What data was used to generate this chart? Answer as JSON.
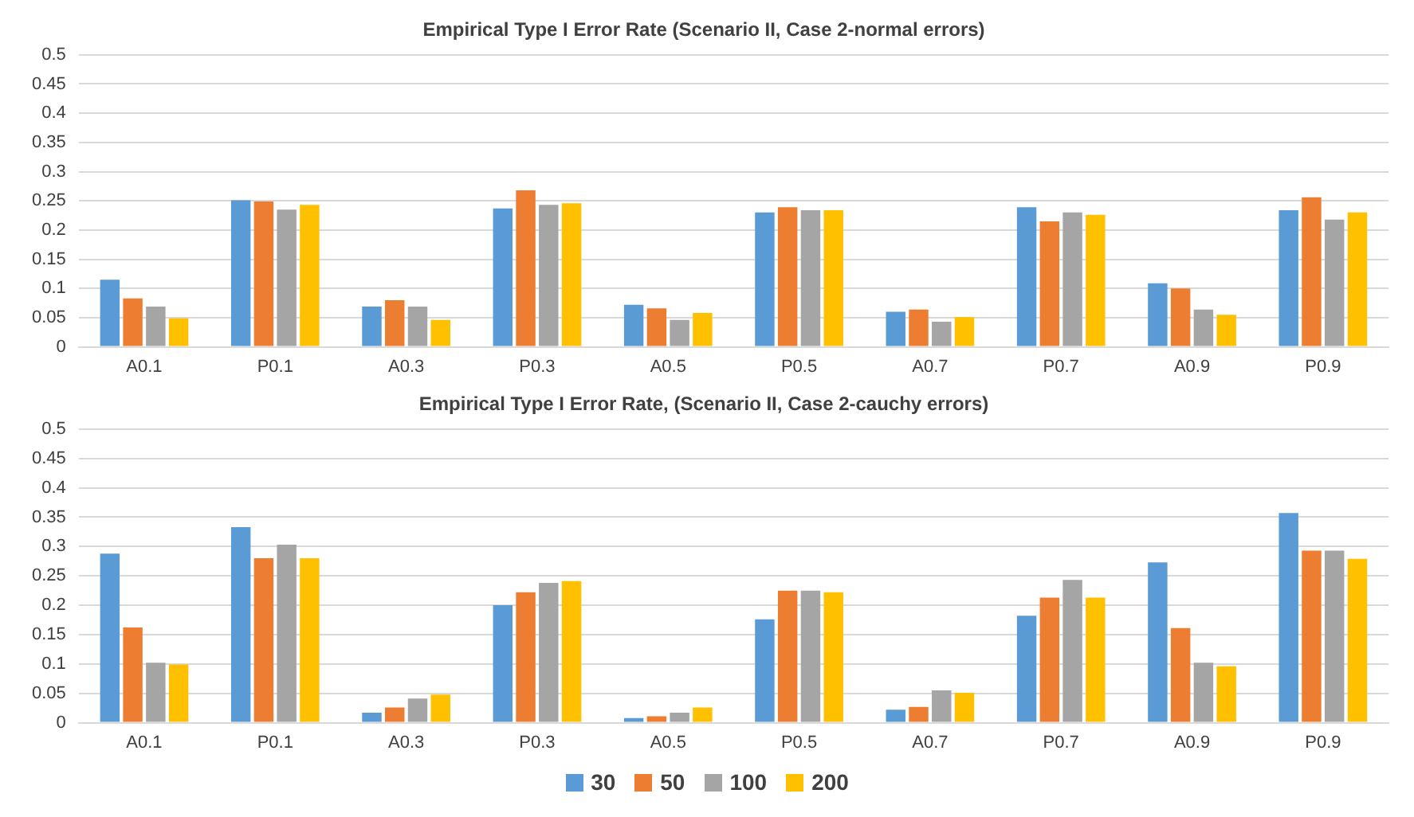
{
  "chart_data": [
    {
      "type": "bar",
      "title": "Empirical Type I Error Rate (Scenario II, Case 2-normal errors)",
      "categories": [
        "A0.1",
        "P0.1",
        "A0.3",
        "P0.3",
        "A0.5",
        "P0.5",
        "A0.7",
        "P0.7",
        "A0.9",
        "P0.9"
      ],
      "series": [
        {
          "color": "#5b9bd5",
          "values": [
            0.115,
            0.251,
            0.069,
            0.237,
            0.072,
            0.23,
            0.06,
            0.239,
            0.109,
            0.234
          ]
        },
        {
          "color": "#ed7d31",
          "values": [
            0.083,
            0.249,
            0.08,
            0.268,
            0.066,
            0.239,
            0.064,
            0.215,
            0.1,
            0.256
          ]
        },
        {
          "color": "#a5a5a5",
          "values": [
            0.069,
            0.235,
            0.069,
            0.243,
            0.046,
            0.234,
            0.043,
            0.23,
            0.064,
            0.218
          ]
        },
        {
          "color": "#ffc000",
          "values": [
            0.049,
            0.243,
            0.046,
            0.246,
            0.058,
            0.234,
            0.051,
            0.226,
            0.055,
            0.23
          ]
        }
      ],
      "ylim": [
        0,
        0.5
      ],
      "yticks": [
        0,
        0.05,
        0.1,
        0.15,
        0.2,
        0.25,
        0.3,
        0.35,
        0.4,
        0.45,
        0.5
      ],
      "grid": "y",
      "legend": false
    },
    {
      "type": "bar",
      "title": "Empirical Type I Error Rate, (Scenario II, Case 2-cauchy errors)",
      "categories": [
        "A0.1",
        "P0.1",
        "A0.3",
        "P0.3",
        "A0.5",
        "P0.5",
        "A0.7",
        "P0.7",
        "A0.9",
        "P0.9"
      ],
      "series": [
        {
          "name": "30",
          "color": "#5b9bd5",
          "values": [
            0.288,
            0.333,
            0.017,
            0.2,
            0.008,
            0.176,
            0.022,
            0.182,
            0.273,
            0.357
          ]
        },
        {
          "name": "50",
          "color": "#ed7d31",
          "values": [
            0.162,
            0.28,
            0.026,
            0.222,
            0.011,
            0.225,
            0.027,
            0.213,
            0.161,
            0.293
          ]
        },
        {
          "name": "100",
          "color": "#a5a5a5",
          "values": [
            0.102,
            0.303,
            0.041,
            0.238,
            0.017,
            0.225,
            0.055,
            0.243,
            0.102,
            0.293
          ]
        },
        {
          "name": "200",
          "color": "#ffc000",
          "values": [
            0.099,
            0.28,
            0.048,
            0.241,
            0.026,
            0.222,
            0.051,
            0.213,
            0.096,
            0.279
          ]
        }
      ],
      "ylim": [
        0,
        0.5
      ],
      "yticks": [
        0,
        0.05,
        0.1,
        0.15,
        0.2,
        0.25,
        0.3,
        0.35,
        0.4,
        0.45,
        0.5
      ],
      "grid": "y",
      "legend": "bottom"
    }
  ]
}
